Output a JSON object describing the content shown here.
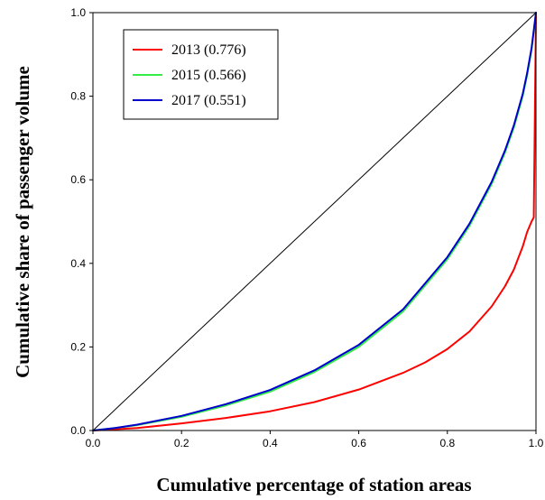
{
  "chart_data": {
    "type": "line",
    "xlabel": "Cumulative percentage of station areas",
    "ylabel": "Cumulative share of passenger  volume",
    "xlim": [
      0,
      1
    ],
    "ylim": [
      0,
      1
    ],
    "xticks": [
      "0.0",
      "0.2",
      "0.4",
      "0.6",
      "0.8",
      "1.0"
    ],
    "yticks": [
      "0.0",
      "0.2",
      "0.4",
      "0.6",
      "0.8",
      "1.0"
    ],
    "legend_position": "top-left",
    "grid": false,
    "reference_line": {
      "x": [
        0,
        1
      ],
      "y": [
        0,
        1
      ],
      "color": "#000000"
    },
    "series": [
      {
        "name": "2013 (0.776)",
        "color": "#ff0000",
        "x": [
          0,
          0.1,
          0.2,
          0.3,
          0.4,
          0.5,
          0.6,
          0.7,
          0.75,
          0.8,
          0.85,
          0.9,
          0.93,
          0.95,
          0.97,
          0.98,
          0.99,
          0.995,
          1.0
        ],
        "y": [
          0,
          0.006,
          0.017,
          0.03,
          0.046,
          0.068,
          0.098,
          0.138,
          0.163,
          0.195,
          0.237,
          0.297,
          0.345,
          0.385,
          0.44,
          0.475,
          0.5,
          0.51,
          1.0
        ]
      },
      {
        "name": "2015 (0.566)",
        "color": "#33ee44",
        "x": [
          0,
          0.05,
          0.1,
          0.2,
          0.3,
          0.4,
          0.5,
          0.6,
          0.7,
          0.8,
          0.85,
          0.9,
          0.93,
          0.95,
          0.97,
          0.98,
          0.99,
          1.0
        ],
        "y": [
          0,
          0.006,
          0.013,
          0.033,
          0.06,
          0.093,
          0.14,
          0.2,
          0.285,
          0.41,
          0.49,
          0.59,
          0.665,
          0.725,
          0.8,
          0.85,
          0.91,
          1.0
        ]
      },
      {
        "name": "2017 (0.551)",
        "color": "#0000cc",
        "x": [
          0,
          0.05,
          0.1,
          0.2,
          0.3,
          0.4,
          0.5,
          0.6,
          0.7,
          0.8,
          0.85,
          0.9,
          0.93,
          0.95,
          0.97,
          0.98,
          0.99,
          1.0
        ],
        "y": [
          0,
          0.006,
          0.014,
          0.035,
          0.063,
          0.097,
          0.144,
          0.205,
          0.29,
          0.415,
          0.495,
          0.595,
          0.67,
          0.73,
          0.805,
          0.855,
          0.915,
          1.0
        ]
      }
    ]
  }
}
